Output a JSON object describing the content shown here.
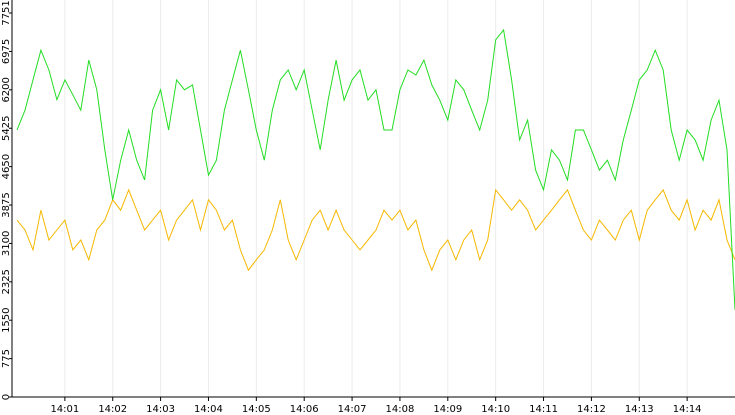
{
  "chart_data": {
    "type": "line",
    "x": [
      "14:00:00",
      "14:00:10",
      "14:00:20",
      "14:00:30",
      "14:00:40",
      "14:00:50",
      "14:01:00",
      "14:01:10",
      "14:01:20",
      "14:01:30",
      "14:01:40",
      "14:01:50",
      "14:02:00",
      "14:02:10",
      "14:02:20",
      "14:02:30",
      "14:02:40",
      "14:02:50",
      "14:03:00",
      "14:03:10",
      "14:03:20",
      "14:03:30",
      "14:03:40",
      "14:03:50",
      "14:04:00",
      "14:04:10",
      "14:04:20",
      "14:04:30",
      "14:04:40",
      "14:04:50",
      "14:05:00",
      "14:05:10",
      "14:05:20",
      "14:05:30",
      "14:05:40",
      "14:05:50",
      "14:06:00",
      "14:06:10",
      "14:06:20",
      "14:06:30",
      "14:06:40",
      "14:06:50",
      "14:07:00",
      "14:07:10",
      "14:07:20",
      "14:07:30",
      "14:07:40",
      "14:07:50",
      "14:08:00",
      "14:08:10",
      "14:08:20",
      "14:08:30",
      "14:08:40",
      "14:08:50",
      "14:09:00",
      "14:09:10",
      "14:09:20",
      "14:09:30",
      "14:09:40",
      "14:09:50",
      "14:10:00",
      "14:10:10",
      "14:10:20",
      "14:10:30",
      "14:10:40",
      "14:10:50",
      "14:11:00",
      "14:11:10",
      "14:11:20",
      "14:11:30",
      "14:11:40",
      "14:11:50",
      "14:12:00",
      "14:12:10",
      "14:12:20",
      "14:12:30",
      "14:12:40",
      "14:12:50",
      "14:13:00",
      "14:13:10",
      "14:13:20",
      "14:13:30",
      "14:13:40",
      "14:13:50",
      "14:14:00",
      "14:14:10",
      "14:14:20",
      "14:14:30",
      "14:14:40",
      "14:14:50",
      "14:15:00"
    ],
    "series": [
      {
        "color": "#22dd22",
        "values": [
          5390,
          5790,
          6400,
          7000,
          6600,
          6000,
          6400,
          6100,
          5790,
          6800,
          6200,
          4990,
          3980,
          4780,
          5390,
          4780,
          4380,
          5790,
          6200,
          5390,
          6400,
          6200,
          6300,
          5390,
          4480,
          4780,
          5790,
          6400,
          7000,
          6200,
          5390,
          4780,
          5790,
          6400,
          6600,
          6200,
          6600,
          5790,
          4990,
          5990,
          6800,
          5990,
          6400,
          6600,
          5990,
          6200,
          5390,
          5390,
          6200,
          6600,
          6500,
          6800,
          6300,
          5990,
          5590,
          6400,
          6200,
          5790,
          5390,
          5990,
          7210,
          7410,
          6400,
          5190,
          5590,
          4580,
          4180,
          4990,
          4780,
          4380,
          5390,
          5390,
          4990,
          4580,
          4780,
          4380,
          5190,
          5790,
          6400,
          6600,
          7000,
          6600,
          5390,
          4780,
          5390,
          5190,
          4780,
          5590,
          5990,
          4990,
          1760
        ]
      },
      {
        "color": "#f5b800",
        "values": [
          3570,
          3370,
          2970,
          3770,
          3170,
          3370,
          3570,
          2970,
          3170,
          2770,
          3370,
          3570,
          3980,
          3770,
          4180,
          3770,
          3370,
          3570,
          3770,
          3170,
          3570,
          3770,
          3980,
          3370,
          3980,
          3770,
          3370,
          3570,
          2970,
          2560,
          2770,
          2970,
          3370,
          3980,
          3170,
          2770,
          3170,
          3570,
          3770,
          3370,
          3770,
          3370,
          3170,
          2970,
          3170,
          3370,
          3770,
          3570,
          3770,
          3370,
          3570,
          2970,
          2560,
          2970,
          3170,
          2770,
          3170,
          3370,
          2770,
          3170,
          4180,
          3980,
          3770,
          3980,
          3770,
          3370,
          3570,
          3770,
          3980,
          4180,
          3770,
          3370,
          3170,
          3570,
          3370,
          3170,
          3570,
          3770,
          3170,
          3770,
          3980,
          4180,
          3770,
          3570,
          3980,
          3370,
          3770,
          3570,
          3980,
          3170,
          2770
        ]
      }
    ],
    "xlim": [
      "14:00:00",
      "14:15:00"
    ],
    "xticks": [
      "14:01",
      "14:02",
      "14:03",
      "14:04",
      "14:05",
      "14:06",
      "14:07",
      "14:08",
      "14:09",
      "14:10",
      "14:11",
      "14:12",
      "14:13",
      "14:14"
    ],
    "ylim": [
      0,
      7751
    ],
    "yticks": [
      0,
      775,
      1550,
      2325,
      3100,
      3875,
      4650,
      5425,
      6200,
      6975,
      7751
    ],
    "grid": true
  }
}
